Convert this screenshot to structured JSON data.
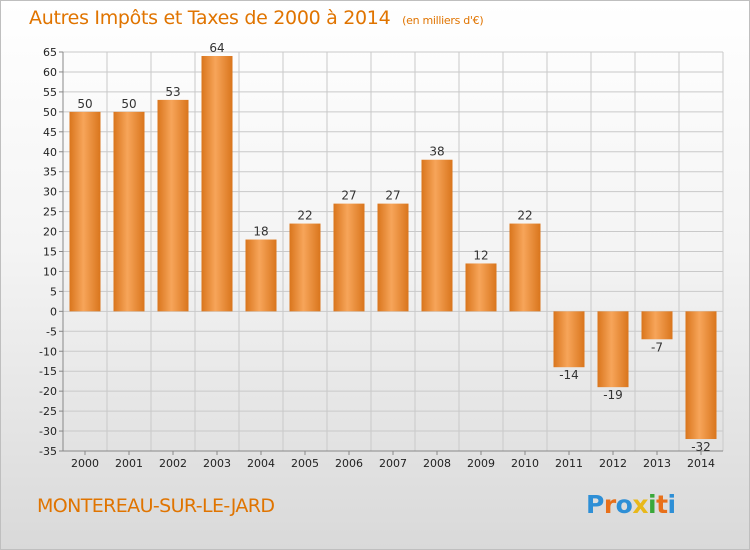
{
  "header": {
    "title": "Autres Impôts et Taxes de 2000 à 2014",
    "unit": "(en milliers d'€)"
  },
  "footer": {
    "city": "MONTEREAU-SUR-LE-JARD",
    "brand": "Proxiti",
    "brand_colors": [
      "#2e8fd6",
      "#e8701a",
      "#2e8fd6",
      "#e8b81a",
      "#3aa83a",
      "#e8701a",
      "#2e8fd6"
    ]
  },
  "colors": {
    "bar_dark": "#d9751c",
    "bar_light": "#f7a55a",
    "text_orange": "#e07400",
    "grid": "#c9c9c9"
  },
  "chart_data": {
    "type": "bar",
    "title": "Autres Impôts et Taxes de 2000 à 2014",
    "subtitle": "(en milliers d'€)",
    "xlabel": "",
    "ylabel": "",
    "categories": [
      "2000",
      "2001",
      "2002",
      "2003",
      "2004",
      "2005",
      "2006",
      "2007",
      "2008",
      "2009",
      "2010",
      "2011",
      "2012",
      "2013",
      "2014"
    ],
    "values": [
      50,
      50,
      53,
      64,
      18,
      22,
      27,
      27,
      38,
      12,
      22,
      -14,
      -19,
      -7,
      -32
    ],
    "value_labels": [
      "50",
      "50",
      "53",
      "64",
      "18",
      "22",
      "27",
      "27",
      "38",
      "12",
      "22",
      "-14",
      "-19",
      "-7",
      "-32"
    ],
    "ylim": [
      -35,
      65
    ],
    "ytick_step": 5,
    "grid": true
  }
}
